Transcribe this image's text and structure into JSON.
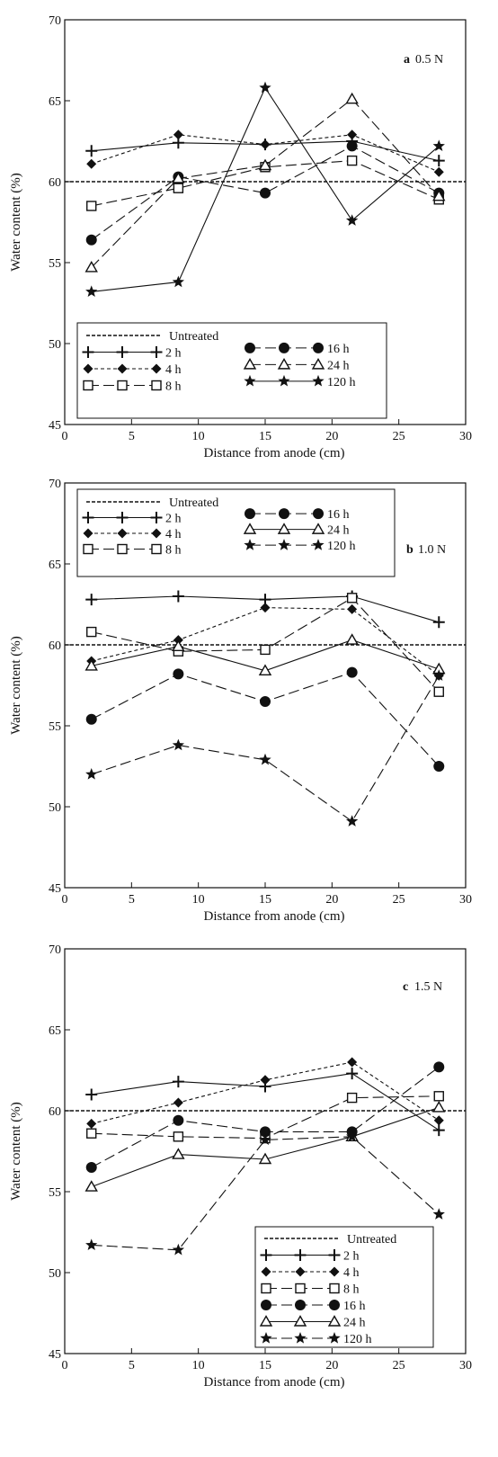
{
  "chart_data": [
    {
      "type": "line",
      "tag": "a",
      "tag_text": "0.5 N",
      "xlabel": "Distance from anode (cm)",
      "ylabel": "Water content (%)",
      "xlim": [
        0,
        30
      ],
      "ylim": [
        45,
        70
      ],
      "xticks": [
        0,
        5,
        10,
        15,
        20,
        25,
        30
      ],
      "yticks": [
        45,
        50,
        55,
        60,
        65,
        70
      ],
      "reference": {
        "name": "Untreated",
        "value": 60
      },
      "legend_position": "bottom-left",
      "x": [
        2,
        8.5,
        15,
        21.5,
        28
      ],
      "series": [
        {
          "name": "2 h",
          "marker": "plus",
          "dash": "solid",
          "values": [
            61.9,
            62.4,
            62.3,
            62.5,
            61.3
          ]
        },
        {
          "name": "4 h",
          "marker": "diamond",
          "dash": "short",
          "values": [
            61.1,
            62.9,
            62.3,
            62.9,
            60.6
          ]
        },
        {
          "name": "8 h",
          "marker": "square",
          "dash": "long",
          "values": [
            58.5,
            59.6,
            60.9,
            61.3,
            58.9
          ]
        },
        {
          "name": "16 h",
          "marker": "circle",
          "dash": "long",
          "values": [
            56.4,
            60.3,
            59.3,
            62.2,
            59.3
          ]
        },
        {
          "name": "24 h",
          "marker": "triangle",
          "dash": "long",
          "values": [
            54.7,
            60.2,
            61.0,
            65.1,
            59.1
          ]
        },
        {
          "name": "120 h",
          "marker": "star",
          "dash": "solid",
          "values": [
            53.2,
            53.8,
            65.8,
            57.6,
            62.2
          ]
        }
      ]
    },
    {
      "type": "line",
      "tag": "b",
      "tag_text": "1.0 N",
      "xlabel": "Distance from anode (cm)",
      "ylabel": "Water content (%)",
      "xlim": [
        0,
        30
      ],
      "ylim": [
        45,
        70
      ],
      "xticks": [
        0,
        5,
        10,
        15,
        20,
        25,
        30
      ],
      "yticks": [
        45,
        50,
        55,
        60,
        65,
        70
      ],
      "reference": {
        "name": "Untreated",
        "value": 60
      },
      "legend_position": "top-left",
      "x": [
        2,
        8.5,
        15,
        21.5,
        28
      ],
      "series": [
        {
          "name": "2 h",
          "marker": "plus",
          "dash": "solid",
          "values": [
            62.8,
            63.0,
            62.8,
            63.0,
            61.4
          ]
        },
        {
          "name": "4 h",
          "marker": "diamond",
          "dash": "short",
          "values": [
            59.0,
            60.3,
            62.3,
            62.2,
            58.1
          ]
        },
        {
          "name": "8 h",
          "marker": "square",
          "dash": "long",
          "values": [
            60.8,
            59.6,
            59.7,
            62.9,
            57.1
          ]
        },
        {
          "name": "16 h",
          "marker": "circle",
          "dash": "long",
          "values": [
            55.4,
            58.2,
            56.5,
            58.3,
            52.5
          ]
        },
        {
          "name": "24 h",
          "marker": "triangle",
          "dash": "solid",
          "values": [
            58.7,
            59.9,
            58.4,
            60.3,
            58.5
          ]
        },
        {
          "name": "120 h",
          "marker": "star",
          "dash": "long",
          "values": [
            52.0,
            53.8,
            52.9,
            49.1,
            58.1
          ]
        }
      ]
    },
    {
      "type": "line",
      "tag": "c",
      "tag_text": "1.5 N",
      "xlabel": "Distance from anode (cm)",
      "ylabel": "Water content (%)",
      "xlim": [
        0,
        30
      ],
      "ylim": [
        45,
        70
      ],
      "xticks": [
        0,
        5,
        10,
        15,
        20,
        25,
        30
      ],
      "yticks": [
        45,
        50,
        55,
        60,
        65,
        70
      ],
      "reference": {
        "name": "Untreated",
        "value": 60
      },
      "legend_position": "bottom-right",
      "x": [
        2,
        8.5,
        15,
        21.5,
        28
      ],
      "series": [
        {
          "name": "2 h",
          "marker": "plus",
          "dash": "solid",
          "values": [
            61.0,
            61.8,
            61.5,
            62.3,
            58.8
          ]
        },
        {
          "name": "4 h",
          "marker": "diamond",
          "dash": "short",
          "values": [
            59.2,
            60.5,
            61.9,
            63.0,
            59.4
          ]
        },
        {
          "name": "8 h",
          "marker": "square",
          "dash": "long",
          "values": [
            58.6,
            58.4,
            58.3,
            60.8,
            60.9
          ]
        },
        {
          "name": "16 h",
          "marker": "circle",
          "dash": "long",
          "values": [
            56.5,
            59.4,
            58.7,
            58.7,
            62.7
          ]
        },
        {
          "name": "24 h",
          "marker": "triangle",
          "dash": "solid",
          "values": [
            55.3,
            57.3,
            57.0,
            58.4,
            60.2
          ]
        },
        {
          "name": "120 h",
          "marker": "star",
          "dash": "long",
          "values": [
            51.7,
            51.4,
            58.2,
            58.4,
            53.6
          ]
        }
      ]
    }
  ]
}
